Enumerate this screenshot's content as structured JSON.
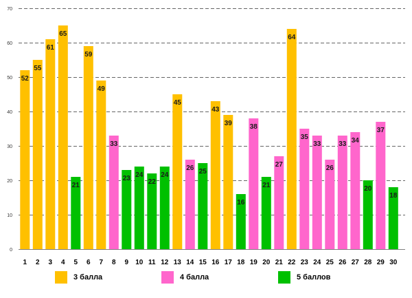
{
  "chart_data": {
    "type": "bar",
    "title": "",
    "xlabel": "",
    "ylabel": "",
    "ylim": [
      0,
      70
    ],
    "y_ticks": [
      "0",
      "10",
      "20",
      "30",
      "40",
      "50",
      "60",
      "70"
    ],
    "grid": true,
    "legend_position": "bottom",
    "categories": [
      "1",
      "2",
      "3",
      "4",
      "5",
      "6",
      "7",
      "8",
      "9",
      "10",
      "11",
      "12",
      "13",
      "14",
      "15",
      "16",
      "17",
      "18",
      "19",
      "20",
      "21",
      "22",
      "23",
      "24",
      "25",
      "26",
      "27",
      "28",
      "29",
      "30"
    ],
    "values": [
      52,
      55,
      61,
      65,
      21,
      59,
      49,
      33,
      23,
      24,
      22,
      24,
      45,
      26,
      25,
      43,
      39,
      16,
      38,
      21,
      27,
      64,
      35,
      33,
      26,
      33,
      34,
      20,
      37,
      18
    ],
    "value_labels": [
      "52",
      "55",
      "61",
      "65",
      "21",
      "59",
      "49",
      "33",
      "23",
      "24",
      "22",
      "24",
      "45",
      "26",
      "25",
      "43",
      "39",
      "16",
      "38",
      "21",
      "27",
      "64",
      "35",
      "33",
      "26",
      "33",
      "34",
      "20",
      "37",
      "18"
    ],
    "groups": [
      "3 балла",
      "3 балла",
      "3 балла",
      "3 балла",
      "5 баллов",
      "3 балла",
      "3 балла",
      "4 балла",
      "5 баллов",
      "5 баллов",
      "5 баллов",
      "5 баллов",
      "3 балла",
      "4 балла",
      "5 баллов",
      "3 балла",
      "3 балла",
      "5 баллов",
      "4 балла",
      "5 баллов",
      "4 балла",
      "3 балла",
      "4 балла",
      "4 балла",
      "4 балла",
      "4 балла",
      "4 балла",
      "5 баллов",
      "4 балла",
      "5 баллов"
    ],
    "series": [
      {
        "name": "3 балла",
        "color": "#FFC000"
      },
      {
        "name": "4 балла",
        "color": "#FF66CC"
      },
      {
        "name": "5 баллов",
        "color": "#00C000"
      }
    ]
  }
}
